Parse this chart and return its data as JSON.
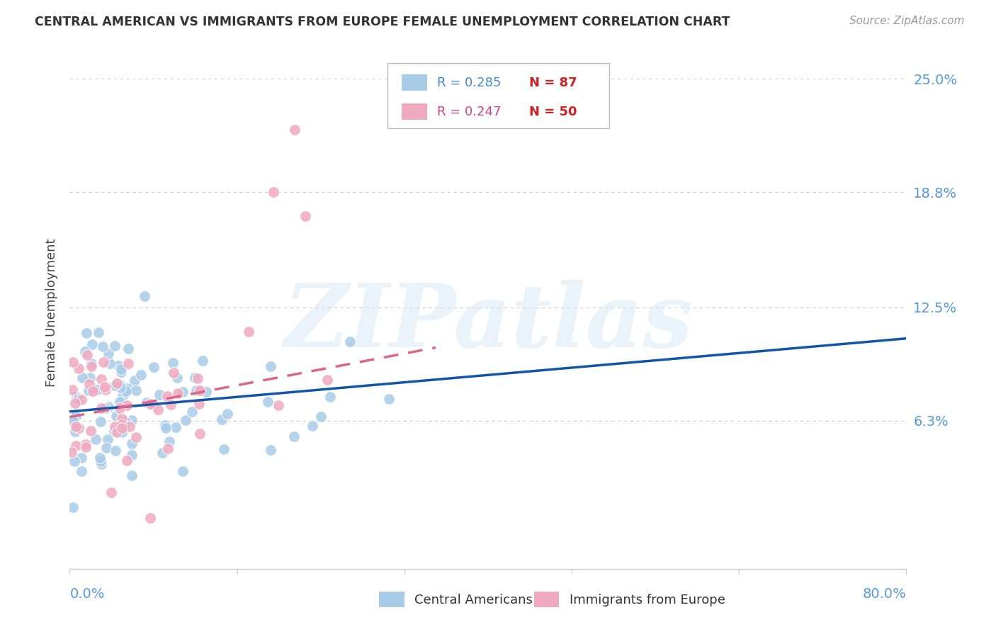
{
  "title": "CENTRAL AMERICAN VS IMMIGRANTS FROM EUROPE FEMALE UNEMPLOYMENT CORRELATION CHART",
  "source": "Source: ZipAtlas.com",
  "ylabel": "Female Unemployment",
  "yticks": [
    0.063,
    0.125,
    0.188,
    0.25
  ],
  "ytick_labels": [
    "6.3%",
    "12.5%",
    "18.8%",
    "25.0%"
  ],
  "xmin": 0.0,
  "xmax": 0.8,
  "ymin": -0.018,
  "ymax": 0.262,
  "blue_R": 0.285,
  "blue_N": 87,
  "pink_R": 0.247,
  "pink_N": 50,
  "blue_color": "#a8cce8",
  "pink_color": "#f0aac0",
  "trend_blue_color": "#1155aa",
  "trend_pink_color": "#dd6688",
  "legend_label_blue": "Central Americans",
  "legend_label_pink": "Immigrants from Europe",
  "watermark": "ZIPatlas",
  "axis_label_color": "#5599dd",
  "grid_color": "#cccccc",
  "title_color": "#333333",
  "source_color": "#999999",
  "blue_trend_start_x": 0.0,
  "blue_trend_start_y": 0.068,
  "blue_trend_end_x": 0.8,
  "blue_trend_end_y": 0.108,
  "pink_trend_start_x": 0.0,
  "pink_trend_start_y": 0.065,
  "pink_trend_end_x": 0.35,
  "pink_trend_end_y": 0.103
}
